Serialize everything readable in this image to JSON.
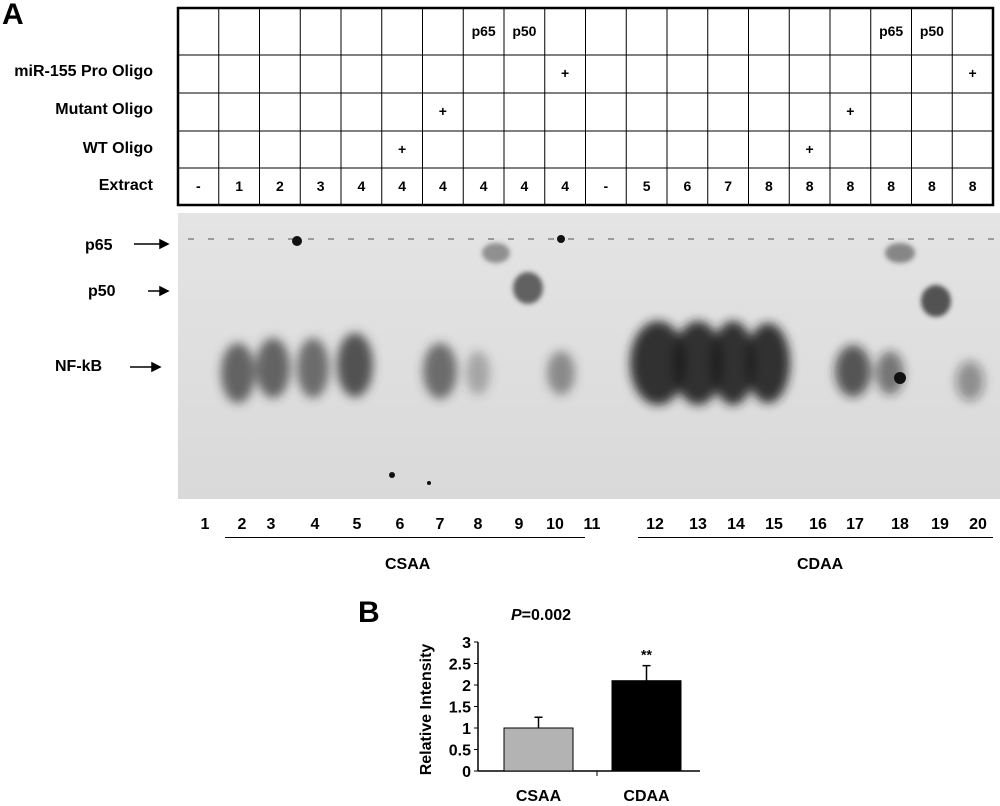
{
  "panel_a": {
    "letter": "A",
    "row_labels": [
      "miR-155 Pro Oligo",
      "Mutant Oligo",
      "WT Oligo",
      "Extract"
    ],
    "antibody_row": [
      "",
      "",
      "",
      "",
      "",
      "",
      "",
      "p65",
      "p50",
      "",
      "",
      "",
      "",
      "",
      "",
      "",
      "",
      "p65",
      "p50",
      ""
    ],
    "promoter_oligo_row": [
      "",
      "",
      "",
      "",
      "",
      "",
      "",
      "",
      "",
      "+",
      "",
      "",
      "",
      "",
      "",
      "",
      "",
      "",
      "",
      "+"
    ],
    "mutant_oligo_row": [
      "",
      "",
      "",
      "",
      "",
      "",
      "+",
      "",
      "",
      "",
      "",
      "",
      "",
      "",
      "",
      "",
      "+",
      "",
      "",
      ""
    ],
    "wt_oligo_row": [
      "",
      "",
      "",
      "",
      "",
      "+",
      "",
      "",
      "",
      "",
      "",
      "",
      "",
      "",
      "",
      "+",
      "",
      "",
      "",
      ""
    ],
    "extract_row": [
      "-",
      "1",
      "2",
      "3",
      "4",
      "4",
      "4",
      "4",
      "4",
      "4",
      "-",
      "5",
      "6",
      "7",
      "8",
      "8",
      "8",
      "8",
      "8",
      "8"
    ],
    "band_labels": [
      "p65",
      "p50",
      "NF-kB"
    ],
    "lane_numbers": [
      "1",
      "2",
      "3",
      "4",
      "5",
      "6",
      "7",
      "8",
      "9",
      "10",
      "11",
      "12",
      "13",
      "14",
      "15",
      "16",
      "17",
      "18",
      "19",
      "20"
    ],
    "group_labels": [
      "CSAA",
      "CDAA"
    ]
  },
  "panel_b": {
    "letter": "B",
    "p_value_italic": "P",
    "p_value_rest": "=0.002",
    "significance": "**"
  },
  "chart_data": {
    "type": "bar",
    "categories": [
      "CSAA",
      "CDAA"
    ],
    "values": [
      1.0,
      2.1
    ],
    "errors": [
      0.25,
      0.35
    ],
    "colors": [
      "#b3b3b3",
      "#000000"
    ],
    "title": "",
    "xlabel": "",
    "ylabel": "Relative Intensity",
    "ylim": [
      0,
      3
    ],
    "yticks": [
      "0",
      "0.5",
      "1",
      "1.5",
      "2",
      "2.5",
      "3"
    ],
    "grid": false
  }
}
